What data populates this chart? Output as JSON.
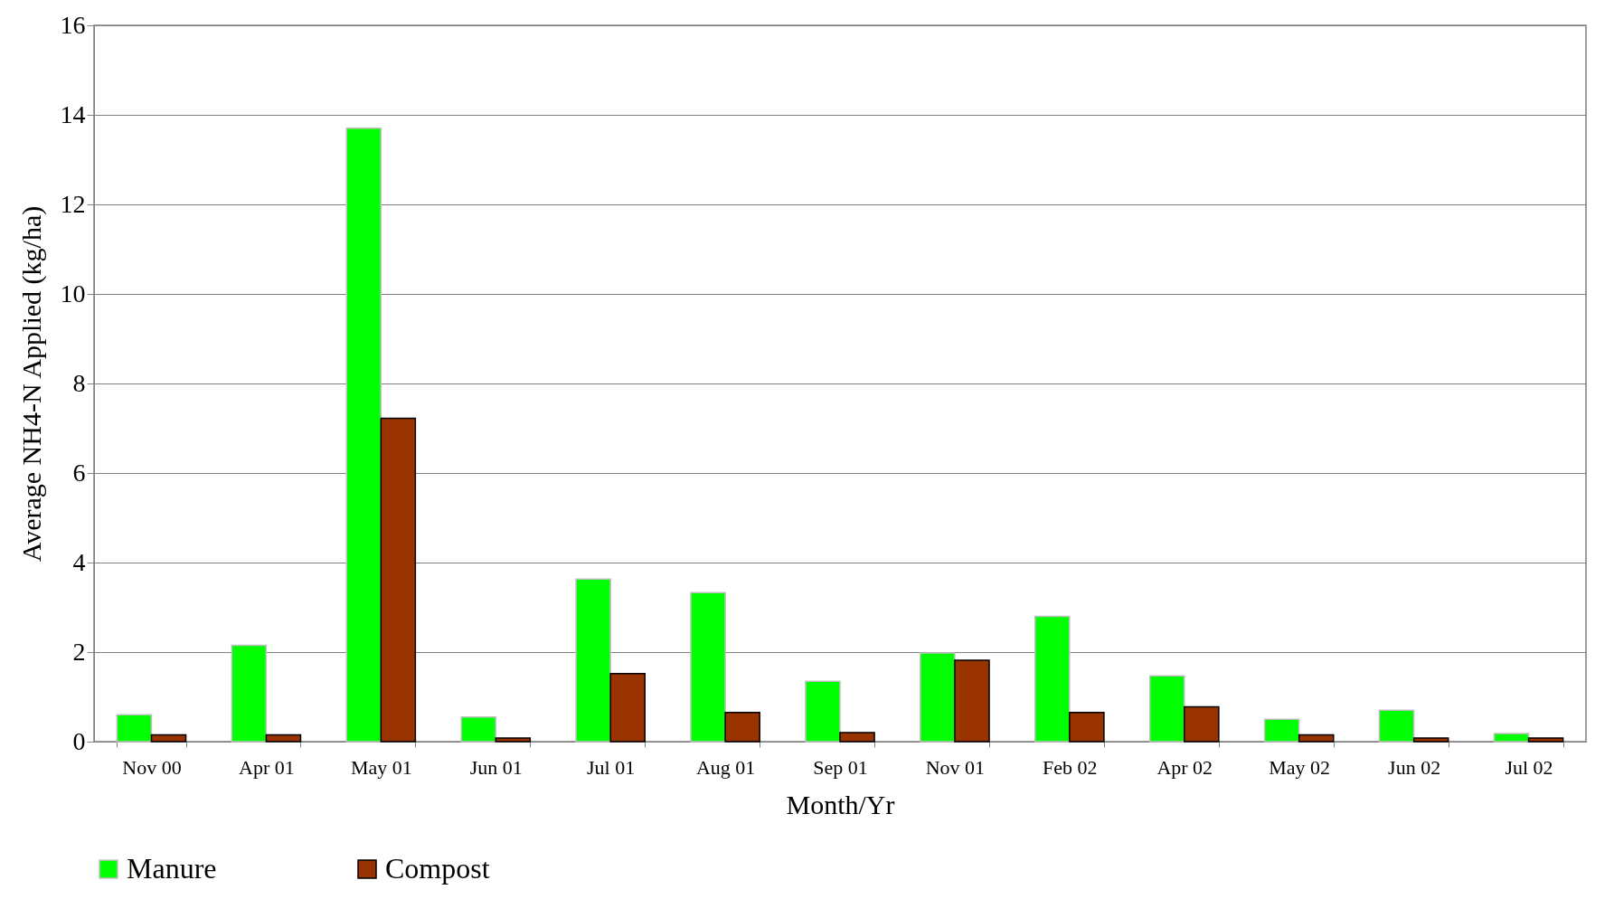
{
  "chart_data": {
    "type": "bar",
    "xlabel": "Month/Yr",
    "ylabel": "Average NH4-N Applied (kg/ha)",
    "categories": [
      "Nov 00",
      "Apr 01",
      "May 01",
      "Jun 01",
      "Jul 01",
      "Aug 01",
      "Sep 01",
      "Nov 01",
      "Feb 02",
      "Apr 02",
      "May 02",
      "Jun 02",
      "Jul 02"
    ],
    "series": [
      {
        "name": "Manure",
        "color": "#00ff00",
        "values": [
          0.6,
          2.15,
          13.7,
          0.55,
          3.63,
          3.33,
          1.35,
          1.98,
          2.8,
          1.47,
          0.5,
          0.7,
          0.18
        ]
      },
      {
        "name": "Compost",
        "color": "#993300",
        "values": [
          0.15,
          0.15,
          7.22,
          0.08,
          1.52,
          0.65,
          0.2,
          1.82,
          0.65,
          0.78,
          0.15,
          0.08,
          0.08
        ]
      }
    ],
    "ylim": [
      0,
      16
    ],
    "yticks": [
      0,
      2,
      4,
      6,
      8,
      10,
      12,
      14,
      16
    ],
    "grid": "y",
    "legend": "bottom"
  }
}
